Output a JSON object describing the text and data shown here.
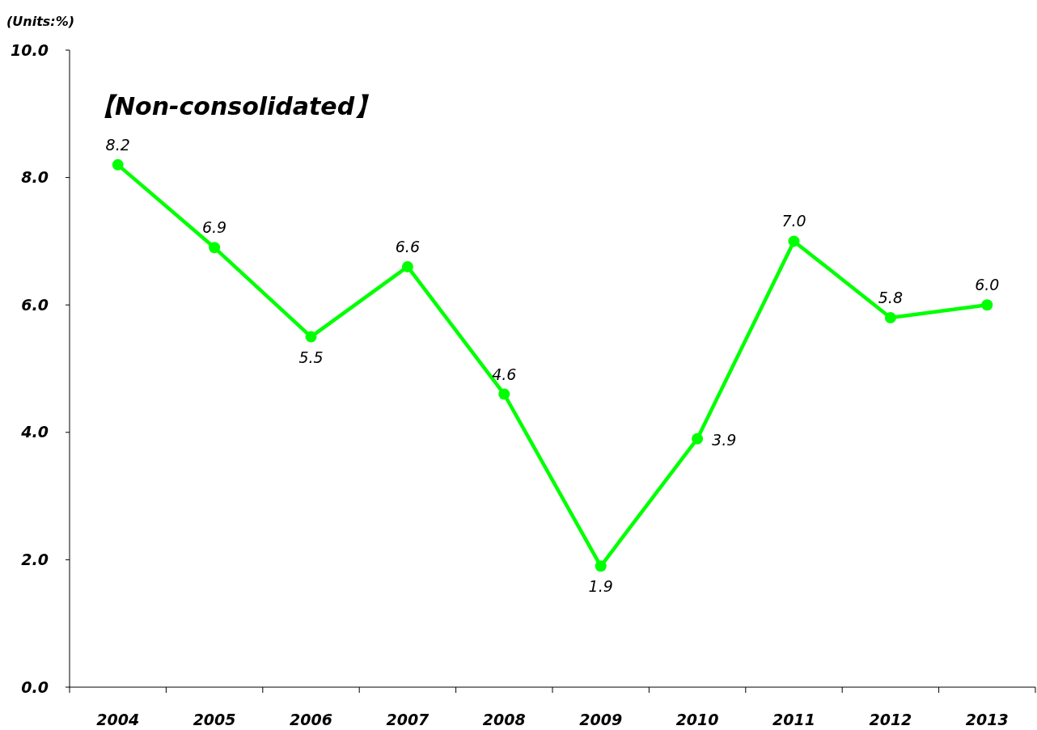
{
  "chart_data": {
    "type": "line",
    "title": "【Non-consolidated】",
    "ylabel": "(Units:%)",
    "categories": [
      "2004",
      "2005",
      "2006",
      "2007",
      "2008",
      "2009",
      "2010",
      "2011",
      "2012",
      "2013"
    ],
    "series": [
      {
        "color": "#00ff00",
        "values": [
          8.2,
          6.9,
          5.5,
          6.6,
          4.6,
          1.9,
          3.9,
          7.0,
          5.8,
          6.0
        ],
        "value_labels": [
          "8.2",
          "6.9",
          "5.5",
          "6.6",
          "4.6",
          "1.9",
          "3.9",
          "7.0",
          "5.8",
          "6.0"
        ]
      }
    ],
    "ylim": [
      0,
      10
    ],
    "yticks": [
      {
        "value": 0,
        "label": "0.0"
      },
      {
        "value": 2,
        "label": "2.0"
      },
      {
        "value": 4,
        "label": "4.0"
      },
      {
        "value": 6,
        "label": "6.0"
      },
      {
        "value": 8,
        "label": "8.0"
      },
      {
        "value": 10,
        "label": "10.0"
      }
    ],
    "marker": "circle",
    "line_style": "solid",
    "grid": false
  }
}
